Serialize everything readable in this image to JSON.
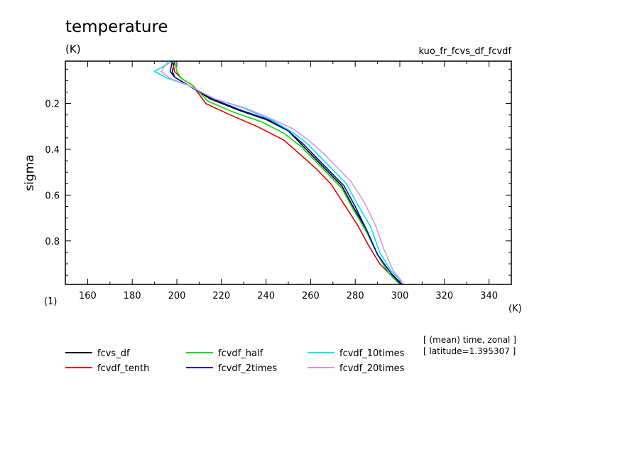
{
  "header": {
    "title": "temperature",
    "units": "(K)",
    "experiment": "kuo_fr_fcvs_df_fcvdf"
  },
  "footer": {
    "note_line1": "[ (mean) time, zonal ]",
    "note_line2": "[ latitude=1.395307 ]"
  },
  "chart_data": {
    "type": "line",
    "title": "temperature",
    "xlabel": "(K)",
    "ylabel": "sigma",
    "yunits": "(1)",
    "xlim": [
      150,
      350
    ],
    "ylim": [
      0.99,
      0.015
    ],
    "y_axis_inverted": true,
    "x_ticks": [
      160,
      180,
      200,
      220,
      240,
      260,
      280,
      300,
      320,
      340
    ],
    "y_ticks": [
      0.2,
      0.4,
      0.6,
      0.8
    ],
    "y_tick_labels": [
      "0.2",
      "0.4",
      "0.6",
      "0.8"
    ],
    "legend_position": "bottom",
    "series": [
      {
        "name": "fcvs_df",
        "color": "#000000",
        "points": [
          [
            199,
            0.015
          ],
          [
            198,
            0.06
          ],
          [
            199,
            0.085
          ],
          [
            205,
            0.12
          ],
          [
            215,
            0.18
          ],
          [
            228,
            0.23
          ],
          [
            240,
            0.27
          ],
          [
            250,
            0.32
          ],
          [
            256,
            0.38
          ],
          [
            262,
            0.44
          ],
          [
            268,
            0.5
          ],
          [
            274,
            0.56
          ],
          [
            279,
            0.65
          ],
          [
            285,
            0.75
          ],
          [
            290,
            0.86
          ],
          [
            295,
            0.94
          ],
          [
            301,
            0.99
          ]
        ]
      },
      {
        "name": "fcvdf_tenth",
        "color": "#e00000",
        "points": [
          [
            198,
            0.015
          ],
          [
            199,
            0.06
          ],
          [
            202,
            0.09
          ],
          [
            207,
            0.12
          ],
          [
            213,
            0.2
          ],
          [
            224,
            0.25
          ],
          [
            236,
            0.3
          ],
          [
            248,
            0.36
          ],
          [
            255,
            0.42
          ],
          [
            262,
            0.48
          ],
          [
            269,
            0.55
          ],
          [
            275,
            0.64
          ],
          [
            281,
            0.73
          ],
          [
            286,
            0.82
          ],
          [
            291,
            0.9
          ],
          [
            296,
            0.95
          ],
          [
            300,
            0.99
          ]
        ]
      },
      {
        "name": "fcvdf_half",
        "color": "#00dd00",
        "points": [
          [
            199,
            0.015
          ],
          [
            200,
            0.06
          ],
          [
            202,
            0.09
          ],
          [
            207,
            0.12
          ],
          [
            214,
            0.19
          ],
          [
            226,
            0.24
          ],
          [
            238,
            0.28
          ],
          [
            248,
            0.33
          ],
          [
            256,
            0.39
          ],
          [
            262,
            0.45
          ],
          [
            268,
            0.51
          ],
          [
            274,
            0.57
          ],
          [
            279,
            0.66
          ],
          [
            285,
            0.76
          ],
          [
            290,
            0.86
          ],
          [
            295,
            0.94
          ],
          [
            300,
            0.99
          ]
        ]
      },
      {
        "name": "fcvdf_2times",
        "color": "#0000c8",
        "points": [
          [
            198,
            0.015
          ],
          [
            197,
            0.06
          ],
          [
            199,
            0.085
          ],
          [
            205,
            0.12
          ],
          [
            216,
            0.18
          ],
          [
            229,
            0.23
          ],
          [
            241,
            0.27
          ],
          [
            250,
            0.32
          ],
          [
            257,
            0.38
          ],
          [
            263,
            0.44
          ],
          [
            269,
            0.5
          ],
          [
            275,
            0.56
          ],
          [
            280,
            0.65
          ],
          [
            285,
            0.75
          ],
          [
            290,
            0.86
          ],
          [
            296,
            0.94
          ],
          [
            301,
            0.99
          ]
        ]
      },
      {
        "name": "fcvdf_10times",
        "color": "#00e6e6",
        "points": [
          [
            198,
            0.015
          ],
          [
            190,
            0.06
          ],
          [
            196,
            0.09
          ],
          [
            205,
            0.12
          ],
          [
            217,
            0.18
          ],
          [
            230,
            0.22
          ],
          [
            242,
            0.27
          ],
          [
            251,
            0.32
          ],
          [
            258,
            0.37
          ],
          [
            264,
            0.43
          ],
          [
            270,
            0.49
          ],
          [
            276,
            0.55
          ],
          [
            281,
            0.64
          ],
          [
            287,
            0.74
          ],
          [
            291,
            0.85
          ],
          [
            296,
            0.93
          ],
          [
            302,
            0.99
          ]
        ]
      },
      {
        "name": "fcvdf_20times",
        "color": "#dc96dc",
        "points": [
          [
            196,
            0.015
          ],
          [
            193,
            0.06
          ],
          [
            197,
            0.09
          ],
          [
            205,
            0.12
          ],
          [
            217,
            0.18
          ],
          [
            231,
            0.22
          ],
          [
            243,
            0.27
          ],
          [
            252,
            0.31
          ],
          [
            259,
            0.36
          ],
          [
            266,
            0.42
          ],
          [
            272,
            0.48
          ],
          [
            278,
            0.54
          ],
          [
            284,
            0.63
          ],
          [
            289,
            0.73
          ],
          [
            293,
            0.84
          ],
          [
            297,
            0.93
          ],
          [
            302,
            0.99
          ]
        ]
      }
    ]
  }
}
